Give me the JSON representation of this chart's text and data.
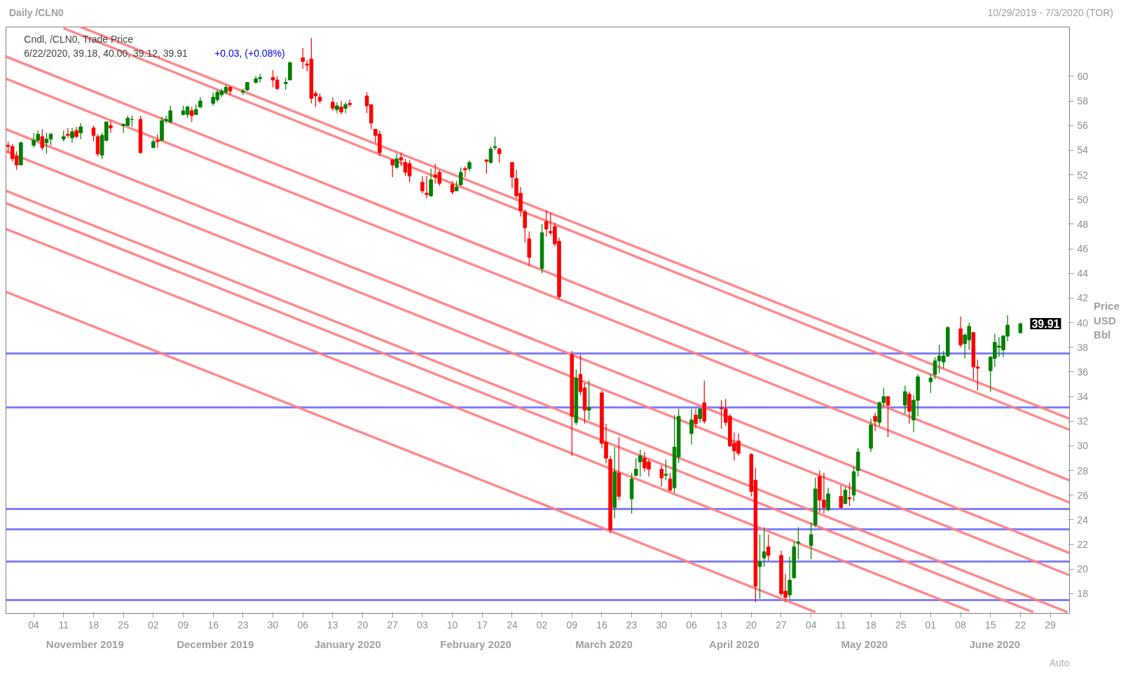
{
  "chart_data": {
    "type": "candlestick",
    "title": "Daily /CLN0",
    "subtitle": "10/29/2019 - 7/3/2020 (TOR)",
    "ylabel": "Price\nUSD\nBbl",
    "x": [
      "2019-10-29",
      "2019-10-30",
      "2019-10-31",
      "2019-11-01",
      "2019-11-04",
      "2019-11-05",
      "2019-11-06",
      "2019-11-07",
      "2019-11-08",
      "2019-11-11",
      "2019-11-12",
      "2019-11-13",
      "2019-11-14",
      "2019-11-15",
      "2019-11-18",
      "2019-11-19",
      "2019-11-20",
      "2019-11-21",
      "2019-11-22",
      "2019-11-25",
      "2019-11-26",
      "2019-11-27",
      "2019-11-29",
      "2019-12-02",
      "2019-12-03",
      "2019-12-04",
      "2019-12-05",
      "2019-12-06",
      "2019-12-09",
      "2019-12-10",
      "2019-12-11",
      "2019-12-12",
      "2019-12-13",
      "2019-12-16",
      "2019-12-17",
      "2019-12-18",
      "2019-12-19",
      "2019-12-20",
      "2019-12-23",
      "2019-12-24",
      "2019-12-26",
      "2019-12-27",
      "2019-12-30",
      "2019-12-31",
      "2020-01-02",
      "2020-01-03",
      "2020-01-06",
      "2020-01-07",
      "2020-01-08",
      "2020-01-09",
      "2020-01-10",
      "2020-01-13",
      "2020-01-14",
      "2020-01-15",
      "2020-01-16",
      "2020-01-17",
      "2020-01-21",
      "2020-01-22",
      "2020-01-23",
      "2020-01-24",
      "2020-01-27",
      "2020-01-28",
      "2020-01-29",
      "2020-01-30",
      "2020-01-31",
      "2020-02-03",
      "2020-02-04",
      "2020-02-05",
      "2020-02-06",
      "2020-02-07",
      "2020-02-10",
      "2020-02-11",
      "2020-02-12",
      "2020-02-13",
      "2020-02-14",
      "2020-02-18",
      "2020-02-19",
      "2020-02-20",
      "2020-02-21",
      "2020-02-24",
      "2020-02-25",
      "2020-02-26",
      "2020-02-27",
      "2020-02-28",
      "2020-03-02",
      "2020-03-03",
      "2020-03-04",
      "2020-03-05",
      "2020-03-06",
      "2020-03-09",
      "2020-03-10",
      "2020-03-11",
      "2020-03-12",
      "2020-03-13",
      "2020-03-16",
      "2020-03-17",
      "2020-03-18",
      "2020-03-19",
      "2020-03-20",
      "2020-03-23",
      "2020-03-24",
      "2020-03-25",
      "2020-03-26",
      "2020-03-27",
      "2020-03-30",
      "2020-03-31",
      "2020-04-01",
      "2020-04-02",
      "2020-04-03",
      "2020-04-06",
      "2020-04-07",
      "2020-04-08",
      "2020-04-09",
      "2020-04-13",
      "2020-04-14",
      "2020-04-15",
      "2020-04-16",
      "2020-04-17",
      "2020-04-20",
      "2020-04-21",
      "2020-04-22",
      "2020-04-23",
      "2020-04-24",
      "2020-04-27",
      "2020-04-28",
      "2020-04-29",
      "2020-04-30",
      "2020-05-01",
      "2020-05-04",
      "2020-05-05",
      "2020-05-06",
      "2020-05-07",
      "2020-05-08",
      "2020-05-11",
      "2020-05-12",
      "2020-05-13",
      "2020-05-14",
      "2020-05-15",
      "2020-05-18",
      "2020-05-19",
      "2020-05-20",
      "2020-05-21",
      "2020-05-22",
      "2020-05-26",
      "2020-05-27",
      "2020-05-28",
      "2020-05-29",
      "2020-06-01",
      "2020-06-02",
      "2020-06-03",
      "2020-06-04",
      "2020-06-05",
      "2020-06-08",
      "2020-06-09",
      "2020-06-10",
      "2020-06-11",
      "2020-06-12",
      "2020-06-15",
      "2020-06-16",
      "2020-06-17",
      "2020-06-18",
      "2020-06-19",
      "2020-06-22"
    ],
    "ohlc": [
      [
        54.4,
        54.7,
        53.8,
        54.3
      ],
      [
        54.3,
        54.5,
        53.1,
        53.3
      ],
      [
        53.5,
        53.9,
        52.4,
        52.8
      ],
      [
        52.8,
        54.7,
        52.8,
        54.6
      ],
      [
        54.4,
        55.4,
        54.2,
        54.8
      ],
      [
        54.8,
        55.6,
        54.7,
        55.3
      ],
      [
        55.1,
        55.7,
        54.0,
        54.2
      ],
      [
        54.6,
        55.4,
        53.7,
        54.9
      ],
      [
        54.9,
        55.4,
        54.4,
        55.3
      ],
      [
        54.9,
        55.6,
        54.7,
        55.1
      ],
      [
        55.3,
        55.8,
        55.0,
        55.2
      ],
      [
        55.0,
        55.8,
        54.6,
        55.5
      ],
      [
        55.6,
        55.9,
        55.0,
        55.1
      ],
      [
        55.4,
        56.2,
        54.9,
        55.9
      ],
      [
        55.8,
        56.0,
        54.7,
        55.2
      ],
      [
        55.1,
        55.3,
        53.5,
        53.7
      ],
      [
        53.6,
        55.4,
        53.3,
        55.2
      ],
      [
        54.8,
        56.3,
        54.7,
        56.3
      ],
      [
        56.0,
        56.4,
        55.4,
        55.8
      ],
      [
        56.0,
        56.2,
        55.4,
        56.1
      ],
      [
        56.0,
        56.8,
        56.0,
        56.6
      ],
      [
        56.5,
        56.8,
        55.9,
        56.5
      ],
      [
        56.5,
        56.8,
        53.7,
        53.8
      ],
      [
        54.2,
        54.9,
        54.2,
        54.7
      ],
      [
        54.8,
        55.3,
        54.2,
        54.7
      ],
      [
        54.8,
        56.7,
        54.8,
        56.4
      ],
      [
        56.4,
        56.8,
        56.2,
        56.5
      ],
      [
        56.3,
        57.6,
        56.2,
        57.2
      ],
      [
        56.9,
        57.6,
        56.8,
        57.2
      ],
      [
        56.9,
        57.6,
        56.6,
        57.5
      ],
      [
        57.2,
        57.5,
        56.3,
        56.8
      ],
      [
        56.9,
        57.7,
        56.9,
        57.3
      ],
      [
        57.5,
        58.3,
        57.4,
        58.0
      ],
      [
        57.8,
        58.7,
        57.6,
        58.3
      ],
      [
        58.1,
        58.9,
        57.9,
        58.7
      ],
      [
        58.5,
        59.0,
        58.3,
        58.8
      ],
      [
        58.7,
        59.3,
        58.6,
        59.1
      ],
      [
        59.1,
        59.2,
        58.5,
        58.8
      ],
      [
        58.7,
        59.0,
        58.5,
        58.8
      ],
      [
        58.9,
        59.5,
        58.8,
        59.5
      ],
      [
        59.5,
        60.0,
        59.4,
        59.8
      ],
      [
        59.8,
        60.2,
        59.5,
        59.9
      ],
      [
        59.9,
        60.5,
        59.1,
        59.7
      ],
      [
        59.7,
        60.0,
        58.9,
        59.0
      ],
      [
        59.4,
        59.9,
        58.9,
        59.5
      ],
      [
        59.7,
        61.2,
        59.7,
        61.1
      ],
      [
        61.5,
        62.3,
        60.6,
        61.2
      ],
      [
        61.0,
        61.3,
        60.4,
        60.9
      ],
      [
        61.4,
        63.1,
        57.8,
        58.2
      ],
      [
        58.6,
        58.8,
        57.5,
        58.4
      ],
      [
        58.3,
        58.6,
        57.8,
        58.0
      ],
      [
        57.9,
        58.3,
        57.2,
        57.4
      ],
      [
        57.3,
        57.9,
        57.0,
        57.6
      ],
      [
        57.5,
        58.0,
        56.9,
        57.1
      ],
      [
        57.4,
        57.9,
        57.0,
        57.7
      ],
      [
        57.8,
        58.1,
        57.5,
        57.7
      ],
      [
        58.4,
        58.7,
        57.0,
        57.6
      ],
      [
        57.7,
        57.7,
        55.7,
        56.2
      ],
      [
        55.7,
        55.7,
        54.6,
        55.2
      ],
      [
        55.3,
        55.6,
        53.5,
        53.8
      ],
      [
        53.2,
        53.3,
        51.8,
        52.8
      ],
      [
        52.6,
        53.7,
        52.5,
        53.3
      ],
      [
        53.4,
        53.8,
        52.7,
        53.2
      ],
      [
        53.0,
        53.3,
        51.9,
        52.2
      ],
      [
        52.9,
        53.2,
        51.4,
        51.9
      ],
      [
        51.4,
        51.9,
        50.5,
        50.7
      ],
      [
        50.5,
        51.9,
        50.1,
        50.4
      ],
      [
        50.3,
        52.5,
        50.2,
        51.6
      ],
      [
        52.0,
        52.9,
        51.3,
        51.8
      ],
      [
        52.2,
        52.4,
        51.1,
        51.3
      ],
      [
        51.2,
        51.5,
        50.4,
        50.6
      ],
      [
        50.7,
        51.5,
        50.7,
        51.0
      ],
      [
        51.2,
        52.6,
        51.1,
        52.2
      ],
      [
        52.5,
        52.7,
        51.8,
        52.4
      ],
      [
        52.5,
        53.2,
        52.3,
        53.0
      ],
      [
        53.2,
        53.3,
        52.1,
        53.1
      ],
      [
        53.0,
        54.3,
        52.9,
        54.1
      ],
      [
        54.2,
        55.1,
        54.0,
        54.3
      ],
      [
        54.1,
        54.2,
        53.0,
        53.7
      ],
      [
        53.0,
        53.0,
        50.9,
        51.8
      ],
      [
        51.7,
        52.4,
        50.1,
        50.3
      ],
      [
        50.5,
        51.0,
        48.6,
        49.1
      ],
      [
        49.0,
        49.2,
        46.5,
        47.7
      ],
      [
        46.8,
        47.4,
        44.6,
        45.3
      ],
      [
        44.4,
        48.0,
        44.0,
        47.3
      ],
      [
        48.2,
        49.1,
        47.0,
        47.6
      ],
      [
        47.4,
        48.9,
        47.1,
        47.3
      ],
      [
        47.8,
        48.1,
        46.2,
        46.4
      ],
      [
        46.6,
        46.9,
        41.9,
        42.1
      ],
      [
        37.4,
        37.7,
        29.2,
        32.4
      ],
      [
        31.9,
        36.2,
        31.7,
        35.5
      ],
      [
        35.8,
        37.4,
        34.1,
        34.4
      ],
      [
        34.7,
        35.1,
        31.8,
        32.9
      ],
      [
        32.9,
        35.3,
        32.1,
        33.1
      ],
      [
        34.3,
        34.5,
        29.8,
        30.2
      ],
      [
        30.3,
        31.8,
        28.6,
        29.0
      ],
      [
        28.9,
        29.2,
        22.9,
        23.2
      ],
      [
        25.0,
        29.9,
        24.1,
        27.9
      ],
      [
        27.8,
        30.7,
        25.6,
        25.9
      ],
      [
        25.7,
        27.8,
        24.5,
        27.3
      ],
      [
        27.6,
        29.0,
        27.5,
        28.1
      ],
      [
        28.7,
        29.7,
        27.5,
        29.2
      ],
      [
        29.0,
        29.5,
        27.9,
        28.2
      ],
      [
        28.7,
        28.9,
        27.5,
        28.1
      ],
      [
        28.1,
        28.4,
        26.7,
        27.4
      ],
      [
        27.6,
        28.9,
        27.2,
        27.7
      ],
      [
        27.3,
        27.8,
        26.3,
        26.4
      ],
      [
        26.6,
        32.5,
        26.2,
        29.9
      ],
      [
        29.1,
        33.0,
        28.6,
        32.4
      ],
      [
        31.0,
        33.0,
        30.1,
        32.1
      ],
      [
        32.5,
        33.0,
        31.4,
        31.8
      ],
      [
        32.2,
        33.0,
        31.9,
        33.0
      ],
      [
        33.5,
        35.3,
        31.8,
        32.0
      ],
      [
        33.1,
        33.7,
        31.4,
        33.0
      ],
      [
        33.0,
        33.8,
        31.6,
        31.9
      ],
      [
        32.4,
        32.6,
        29.9,
        30.0
      ],
      [
        30.2,
        31.1,
        28.8,
        29.6
      ],
      [
        30.4,
        31.0,
        29.2,
        29.4
      ],
      [
        29.3,
        29.4,
        25.9,
        26.3
      ],
      [
        27.2,
        28.2,
        17.3,
        18.6
      ],
      [
        20.2,
        22.8,
        17.6,
        20.6
      ],
      [
        20.9,
        23.4,
        20.2,
        21.4
      ],
      [
        21.8,
        22.8,
        20.7,
        21.1
      ],
      [
        21.1,
        21.5,
        17.8,
        18.0
      ],
      [
        18.2,
        19.6,
        17.3,
        17.7
      ],
      [
        17.9,
        21.0,
        17.6,
        19.1
      ],
      [
        19.3,
        22.2,
        19.2,
        21.8
      ],
      [
        22.1,
        23.4,
        20.8,
        22.2
      ],
      [
        21.9,
        23.8,
        20.8,
        22.8
      ],
      [
        23.6,
        27.4,
        23.4,
        26.5
      ],
      [
        27.5,
        28.0,
        24.6,
        25.6
      ],
      [
        25.6,
        27.8,
        24.5,
        25.0
      ],
      [
        24.8,
        26.6,
        24.7,
        26.1
      ],
      [
        25.9,
        26.8,
        24.9,
        25.0
      ],
      [
        25.3,
        26.7,
        25.3,
        26.4
      ],
      [
        25.8,
        27.0,
        25.1,
        25.7
      ],
      [
        26.0,
        28.3,
        25.5,
        27.9
      ],
      [
        28.0,
        29.8,
        27.5,
        29.5
      ],
      [
        29.8,
        32.2,
        29.5,
        31.7
      ],
      [
        32.4,
        32.7,
        31.2,
        32.0
      ],
      [
        31.9,
        33.6,
        31.6,
        33.5
      ],
      [
        33.5,
        34.7,
        33.2,
        34.0
      ],
      [
        34.0,
        34.0,
        30.7,
        33.3
      ],
      [
        33.3,
        34.9,
        32.6,
        34.4
      ],
      [
        34.2,
        34.4,
        31.8,
        32.8
      ],
      [
        32.1,
        34.1,
        31.1,
        33.7
      ],
      [
        33.7,
        35.8,
        32.4,
        35.6
      ],
      [
        35.2,
        35.8,
        34.3,
        35.5
      ],
      [
        35.8,
        37.2,
        35.4,
        36.9
      ],
      [
        36.9,
        38.2,
        35.9,
        37.3
      ],
      [
        36.8,
        37.7,
        36.3,
        37.3
      ],
      [
        37.3,
        39.7,
        37.2,
        39.6
      ],
      [
        39.5,
        40.5,
        38.0,
        38.2
      ],
      [
        38.3,
        39.1,
        37.1,
        39.0
      ],
      [
        38.6,
        40.0,
        37.8,
        39.7
      ],
      [
        39.2,
        39.2,
        35.4,
        36.4
      ],
      [
        36.4,
        37.0,
        34.5,
        36.3
      ],
      [
        36.1,
        37.3,
        34.4,
        37.2
      ],
      [
        37.1,
        39.1,
        36.4,
        38.4
      ],
      [
        38.0,
        38.8,
        37.2,
        38.1
      ],
      [
        37.8,
        39.0,
        37.2,
        38.9
      ],
      [
        38.9,
        40.6,
        38.5,
        39.8
      ],
      [
        39.18,
        40.0,
        39.12,
        39.91
      ]
    ],
    "colors": [
      "#ff0000",
      "#ff0000",
      "#ff0000",
      "#008000",
      "#008000",
      "#008000",
      "#ff0000",
      "#008000",
      "#008000",
      "#008000",
      "#ff0000",
      "#008000",
      "#ff0000",
      "#008000",
      "#ff0000",
      "#ff0000",
      "#008000",
      "#008000",
      "#ff0000",
      "#008000",
      "#008000",
      "#008000",
      "#ff0000",
      "#008000",
      "#ff0000",
      "#008000",
      "#008000",
      "#008000",
      "#008000",
      "#008000",
      "#ff0000",
      "#008000",
      "#008000",
      "#008000",
      "#008000",
      "#008000",
      "#008000",
      "#ff0000",
      "#008000",
      "#008000",
      "#008000",
      "#008000",
      "#ff0000",
      "#ff0000",
      "#008000",
      "#008000",
      "#ff0000",
      "#ff0000",
      "#ff0000",
      "#ff0000",
      "#ff0000",
      "#ff0000",
      "#008000",
      "#ff0000",
      "#008000",
      "#ff0000",
      "#ff0000",
      "#ff0000",
      "#ff0000",
      "#ff0000",
      "#ff0000",
      "#008000",
      "#ff0000",
      "#ff0000",
      "#ff0000",
      "#ff0000",
      "#ff0000",
      "#008000",
      "#ff0000",
      "#ff0000",
      "#ff0000",
      "#008000",
      "#008000",
      "#ff0000",
      "#008000",
      "#ff0000",
      "#008000",
      "#008000",
      "#ff0000",
      "#ff0000",
      "#ff0000",
      "#ff0000",
      "#ff0000",
      "#ff0000",
      "#008000",
      "#ff0000",
      "#ff0000",
      "#ff0000",
      "#ff0000",
      "#ff0000",
      "#008000",
      "#ff0000",
      "#ff0000",
      "#008000",
      "#ff0000",
      "#ff0000",
      "#ff0000",
      "#008000",
      "#ff0000",
      "#008000",
      "#008000",
      "#008000",
      "#ff0000",
      "#ff0000",
      "#ff0000",
      "#008000",
      "#ff0000",
      "#008000",
      "#008000",
      "#008000",
      "#ff0000",
      "#008000",
      "#ff0000",
      "#ff0000",
      "#ff0000",
      "#ff0000",
      "#ff0000",
      "#ff0000",
      "#ff0000",
      "#ff0000",
      "#008000",
      "#008000",
      "#ff0000",
      "#ff0000",
      "#ff0000",
      "#008000",
      "#008000",
      "#008000",
      "#008000",
      "#008000",
      "#ff0000",
      "#ff0000",
      "#008000",
      "#ff0000",
      "#008000",
      "#ff0000",
      "#008000",
      "#008000",
      "#008000",
      "#ff0000",
      "#008000",
      "#008000",
      "#ff0000",
      "#008000",
      "#ff0000",
      "#008000",
      "#008000",
      "#008000",
      "#008000",
      "#008000",
      "#008000",
      "#008000",
      "#ff0000",
      "#008000",
      "#008000",
      "#ff0000",
      "#ff0000",
      "#008000",
      "#008000",
      "#008000",
      "#008000",
      "#008000",
      "#008000"
    ],
    "series": [
      {
        "type": "line",
        "color": "#ff8080",
        "x": [
          "2019-11-15",
          "2020-07-03T12:00"
        ],
        "values": [
          64.0,
          32.2
        ]
      },
      {
        "type": "line",
        "color": "#ff8080",
        "x": [
          "2019-11-11",
          "2020-07-03T12:00"
        ],
        "values": [
          63.9,
          31.3
        ]
      },
      {
        "type": "line",
        "color": "#ff8080",
        "x": [
          "2019-10-28T12:00",
          "2020-07-03T12:00"
        ],
        "values": [
          61.6,
          27.2
        ]
      },
      {
        "type": "line",
        "color": "#ff8080",
        "x": [
          "2019-10-28T12:00",
          "2020-07-03T12:00"
        ],
        "values": [
          59.8,
          25.4
        ]
      },
      {
        "type": "line",
        "color": "#ff8080",
        "x": [
          "2019-10-28T12:00",
          "2020-07-03T12:00"
        ],
        "values": [
          55.7,
          21.3
        ]
      },
      {
        "type": "line",
        "color": "#ff8080",
        "x": [
          "2019-10-28T12:00",
          "2020-07-03T12:00"
        ],
        "values": [
          53.9,
          19.5
        ]
      },
      {
        "type": "line",
        "color": "#ff8080",
        "x": [
          "2019-10-28T12:00",
          "2020-07-03"
        ],
        "values": [
          50.7,
          16.5
        ]
      },
      {
        "type": "line",
        "color": "#ff8080",
        "x": [
          "2019-10-28T12:00",
          "2020-06-25"
        ],
        "values": [
          49.7,
          16.5
        ]
      },
      {
        "type": "line",
        "color": "#ff8080",
        "x": [
          "2019-10-28T12:00",
          "2020-06-10"
        ],
        "values": [
          47.6,
          16.6
        ]
      },
      {
        "type": "line",
        "color": "#ff8080",
        "x": [
          "2019-10-28T12:00",
          "2020-05-05"
        ],
        "values": [
          42.5,
          16.5
        ]
      }
    ],
    "ref_lines": [
      {
        "axis": "y",
        "value": 37.5,
        "color": "#8080ff"
      },
      {
        "axis": "y",
        "value": 33.1,
        "color": "#8080ff"
      },
      {
        "axis": "y",
        "value": 24.9,
        "color": "#8080ff"
      },
      {
        "axis": "y",
        "value": 23.2,
        "color": "#8080ff"
      },
      {
        "axis": "y",
        "value": 20.6,
        "color": "#8080ff"
      },
      {
        "axis": "y",
        "value": 17.5,
        "color": "#8080ff"
      }
    ],
    "xlim": [
      "2019-10-28T12:00",
      "2020-07-03T12:00"
    ],
    "xticks": [
      {
        "value": "2019-11-04",
        "label": "04"
      },
      {
        "value": "2019-11-11",
        "label": "11"
      },
      {
        "value": "2019-11-18",
        "label": "18"
      },
      {
        "value": "2019-11-25",
        "label": "25"
      },
      {
        "value": "2019-12-02",
        "label": "02"
      },
      {
        "value": "2019-12-09",
        "label": "09"
      },
      {
        "value": "2019-12-16",
        "label": "16"
      },
      {
        "value": "2019-12-23",
        "label": "23"
      },
      {
        "value": "2019-12-30",
        "label": "30"
      },
      {
        "value": "2020-01-06",
        "label": "06"
      },
      {
        "value": "2020-01-13",
        "label": "13"
      },
      {
        "value": "2020-01-20",
        "label": "20"
      },
      {
        "value": "2020-01-27",
        "label": "27"
      },
      {
        "value": "2020-02-03",
        "label": "03"
      },
      {
        "value": "2020-02-10",
        "label": "10"
      },
      {
        "value": "2020-02-17",
        "label": "17"
      },
      {
        "value": "2020-02-24",
        "label": "24"
      },
      {
        "value": "2020-03-02",
        "label": "02"
      },
      {
        "value": "2020-03-09",
        "label": "09"
      },
      {
        "value": "2020-03-16",
        "label": "16"
      },
      {
        "value": "2020-03-23",
        "label": "23"
      },
      {
        "value": "2020-03-30",
        "label": "30"
      },
      {
        "value": "2020-04-06",
        "label": "06"
      },
      {
        "value": "2020-04-13",
        "label": "13"
      },
      {
        "value": "2020-04-20",
        "label": "20"
      },
      {
        "value": "2020-04-27",
        "label": "27"
      },
      {
        "value": "2020-05-04",
        "label": "04"
      },
      {
        "value": "2020-05-11",
        "label": "11"
      },
      {
        "value": "2020-05-18",
        "label": "18"
      },
      {
        "value": "2020-05-25",
        "label": "25"
      },
      {
        "value": "2020-06-01",
        "label": "01"
      },
      {
        "value": "2020-06-08",
        "label": "08"
      },
      {
        "value": "2020-06-15",
        "label": "15"
      },
      {
        "value": "2020-06-22",
        "label": "22"
      },
      {
        "value": "2020-06-29",
        "label": "29"
      }
    ],
    "ylim": [
      16.4,
      64.0
    ],
    "yticks": [
      18,
      20,
      22,
      24,
      26,
      28,
      30,
      32,
      34,
      36,
      38,
      40,
      42,
      44,
      46,
      48,
      50,
      52,
      54,
      56,
      58,
      60
    ],
    "grid": false,
    "annotations": [
      "Cndl, /CLN0, Trade Price",
      "6/22/2020, 39.18, 40.00, 39.12, 39.91",
      "+0.03, (+0.08%)",
      {
        "text": "39.91",
        "x": "2020-06-22",
        "y": 39.91
      },
      "Auto",
      "November 2019",
      "December 2019",
      "January 2020",
      "February 2020",
      "March 2020",
      "April 2020",
      "May 2020",
      "June 2020"
    ]
  }
}
